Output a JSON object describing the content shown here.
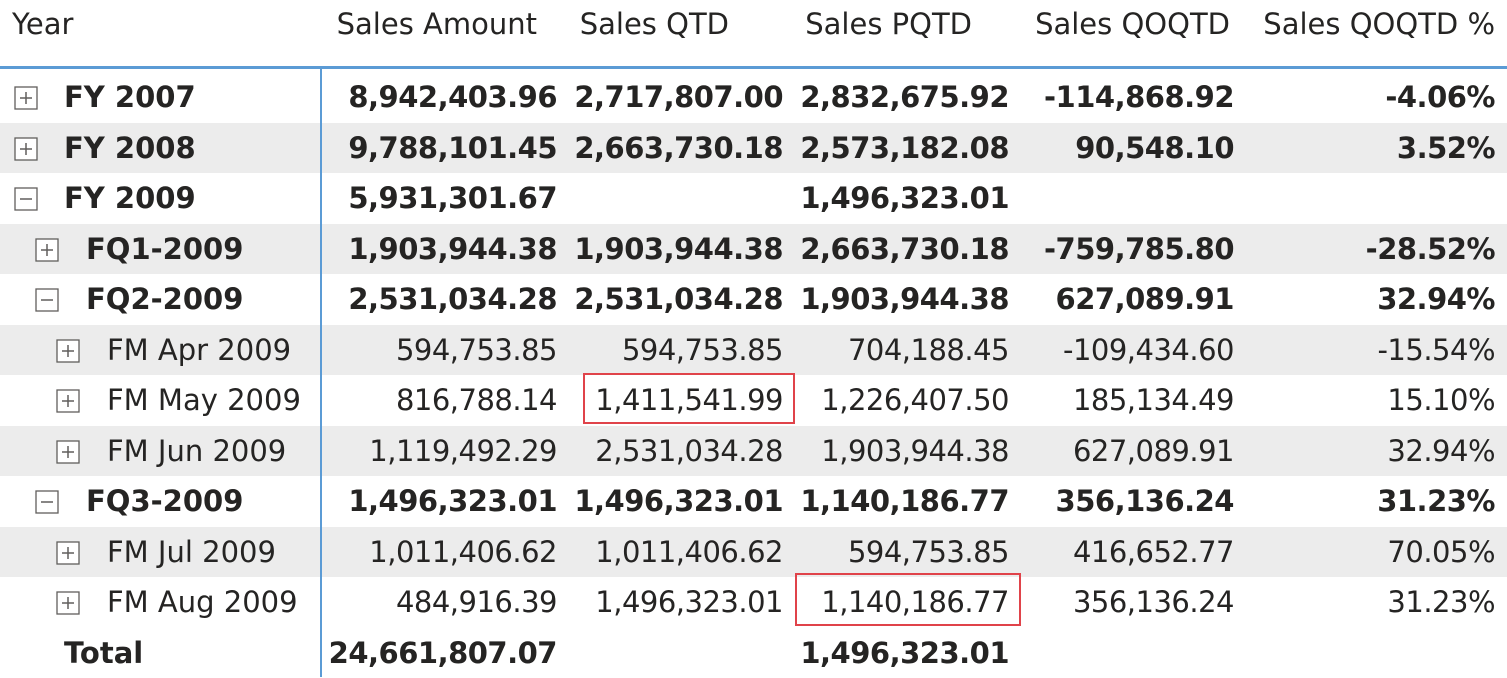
{
  "columns": {
    "year": "Year",
    "sales_amount": "Sales Amount",
    "sales_qtd": "Sales QTD",
    "sales_pqtd": "Sales PQTD",
    "sales_qoqtd": "Sales QOQTD",
    "sales_qoqtd_pct": "Sales QOQTD %"
  },
  "rows": [
    {
      "label": "FY 2007",
      "toggle": "expand",
      "sales_amount": "8,942,403.96",
      "sales_qtd": "2,717,807.00",
      "sales_pqtd": "2,832,675.92",
      "sales_qoqtd": "-114,868.92",
      "sales_qoqtd_pct": "-4.06%"
    },
    {
      "label": "FY 2008",
      "toggle": "expand",
      "sales_amount": "9,788,101.45",
      "sales_qtd": "2,663,730.18",
      "sales_pqtd": "2,573,182.08",
      "sales_qoqtd": "90,548.10",
      "sales_qoqtd_pct": "3.52%"
    },
    {
      "label": "FY 2009",
      "toggle": "collapse",
      "sales_amount": "5,931,301.67",
      "sales_qtd": "",
      "sales_pqtd": "1,496,323.01",
      "sales_qoqtd": "",
      "sales_qoqtd_pct": ""
    },
    {
      "label": "FQ1-2009",
      "toggle": "expand",
      "sales_amount": "1,903,944.38",
      "sales_qtd": "1,903,944.38",
      "sales_pqtd": "2,663,730.18",
      "sales_qoqtd": "-759,785.80",
      "sales_qoqtd_pct": "-28.52%"
    },
    {
      "label": "FQ2-2009",
      "toggle": "collapse",
      "sales_amount": "2,531,034.28",
      "sales_qtd": "2,531,034.28",
      "sales_pqtd": "1,903,944.38",
      "sales_qoqtd": "627,089.91",
      "sales_qoqtd_pct": "32.94%"
    },
    {
      "label": "FM Apr 2009",
      "toggle": "expand",
      "sales_amount": "594,753.85",
      "sales_qtd": "594,753.85",
      "sales_pqtd": "704,188.45",
      "sales_qoqtd": "-109,434.60",
      "sales_qoqtd_pct": "-15.54%"
    },
    {
      "label": "FM May 2009",
      "toggle": "expand",
      "sales_amount": "816,788.14",
      "sales_qtd": "1,411,541.99",
      "sales_pqtd": "1,226,407.50",
      "sales_qoqtd": "185,134.49",
      "sales_qoqtd_pct": "15.10%"
    },
    {
      "label": "FM Jun 2009",
      "toggle": "expand",
      "sales_amount": "1,119,492.29",
      "sales_qtd": "2,531,034.28",
      "sales_pqtd": "1,903,944.38",
      "sales_qoqtd": "627,089.91",
      "sales_qoqtd_pct": "32.94%"
    },
    {
      "label": "FQ3-2009",
      "toggle": "collapse",
      "sales_amount": "1,496,323.01",
      "sales_qtd": "1,496,323.01",
      "sales_pqtd": "1,140,186.77",
      "sales_qoqtd": "356,136.24",
      "sales_qoqtd_pct": "31.23%"
    },
    {
      "label": "FM Jul 2009",
      "toggle": "expand",
      "sales_amount": "1,011,406.62",
      "sales_qtd": "1,011,406.62",
      "sales_pqtd": "594,753.85",
      "sales_qoqtd": "416,652.77",
      "sales_qoqtd_pct": "70.05%"
    },
    {
      "label": "FM Aug 2009",
      "toggle": "expand",
      "sales_amount": "484,916.39",
      "sales_qtd": "1,496,323.01",
      "sales_pqtd": "1,140,186.77",
      "sales_qoqtd": "356,136.24",
      "sales_qoqtd_pct": "31.23%"
    },
    {
      "label": "Total",
      "toggle": "none",
      "sales_amount": "24,661,807.07",
      "sales_qtd": "",
      "sales_pqtd": "1,496,323.01",
      "sales_qoqtd": "",
      "sales_qoqtd_pct": ""
    }
  ],
  "colors": {
    "accent": "#5b9bd5",
    "highlight": "#e0434a",
    "row_shade": "#ececec"
  }
}
